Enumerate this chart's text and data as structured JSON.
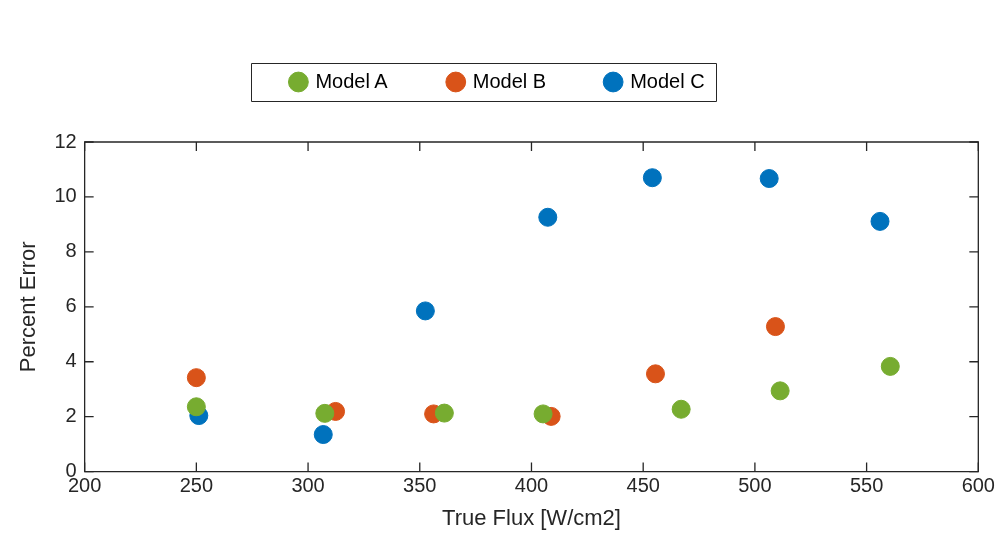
{
  "chart_data": {
    "type": "scatter",
    "xlabel": "True Flux [W/cm2]",
    "ylabel": "Percent Error",
    "xlim": [
      200,
      600
    ],
    "xticks": [
      200,
      250,
      300,
      350,
      400,
      450,
      500,
      550,
      600
    ],
    "ylim": [
      0,
      12
    ],
    "yticks": [
      0,
      2,
      4,
      6,
      8,
      10,
      12
    ],
    "grid": false,
    "legend": "top",
    "marker": "circle",
    "series": [
      {
        "name": "Model A",
        "color": "#77ac30",
        "x": [
          250,
          307.5,
          361,
          405.2,
          467,
          511.3,
          560.6
        ],
        "values": [
          2.36,
          2.12,
          2.13,
          2.1,
          2.27,
          2.94,
          3.83
        ]
      },
      {
        "name": "Model B",
        "color": "#d95319",
        "x": [
          250,
          312.3,
          356.2,
          408.8,
          455.5,
          509.2
        ],
        "values": [
          3.42,
          2.19,
          2.1,
          2.01,
          3.56,
          5.28
        ]
      },
      {
        "name": "Model C",
        "color": "#0072bd",
        "x": [
          251.1,
          306.8,
          352.5,
          407.3,
          454.1,
          506.4,
          556
        ],
        "values": [
          2.04,
          1.35,
          5.85,
          9.26,
          10.7,
          10.67,
          9.11
        ]
      }
    ]
  }
}
